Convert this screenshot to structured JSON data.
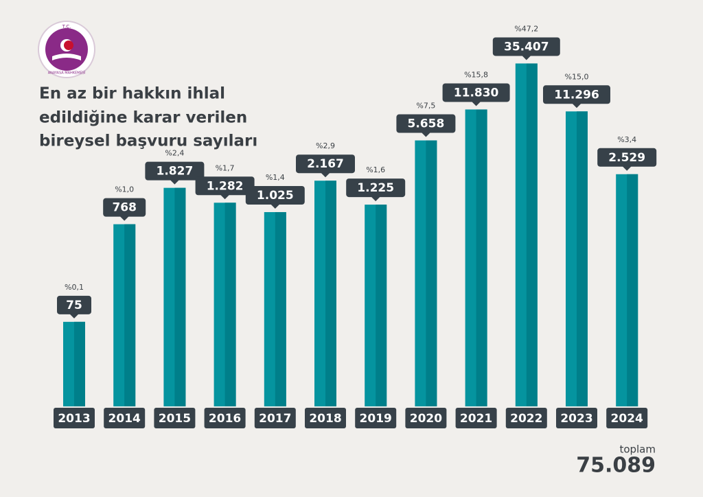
{
  "logo": {
    "top": "T.C.",
    "bottom": "ANAYASA MAHKEMESİ"
  },
  "chart_data": {
    "type": "bar",
    "title": [
      "En az bir hakkın ihlal",
      "edildiğine karar verilen",
      "bireysel başvuru sayıları"
    ],
    "categories": [
      "2013",
      "2014",
      "2015",
      "2016",
      "2017",
      "2018",
      "2019",
      "2020",
      "2021",
      "2022",
      "2023",
      "2024"
    ],
    "values": [
      75,
      768,
      1827,
      1282,
      1025,
      2167,
      1225,
      5658,
      11830,
      35407,
      11296,
      2529
    ],
    "value_labels": [
      "75",
      "768",
      "1.827",
      "1.282",
      "1.025",
      "2.167",
      "1.225",
      "5.658",
      "11.830",
      "35.407",
      "11.296",
      "2.529"
    ],
    "shares": [
      0.1,
      1.0,
      2.4,
      1.7,
      1.4,
      2.9,
      1.6,
      7.5,
      15.8,
      47.2,
      15.0,
      3.4
    ],
    "share_labels": [
      "%0,1",
      "%1,0",
      "%2,4",
      "%1,7",
      "%1,4",
      "%2,9",
      "%1,6",
      "%7,5",
      "%15,8",
      "%47,2",
      "%15,0",
      "%3,4"
    ],
    "color": "#05949f",
    "shade": "#007f8a",
    "label_color": "#374149",
    "log_scale": true,
    "ylim": [
      10,
      40000
    ],
    "total": {
      "label": "toplam",
      "value": 75089,
      "value_label": "75.089"
    }
  }
}
